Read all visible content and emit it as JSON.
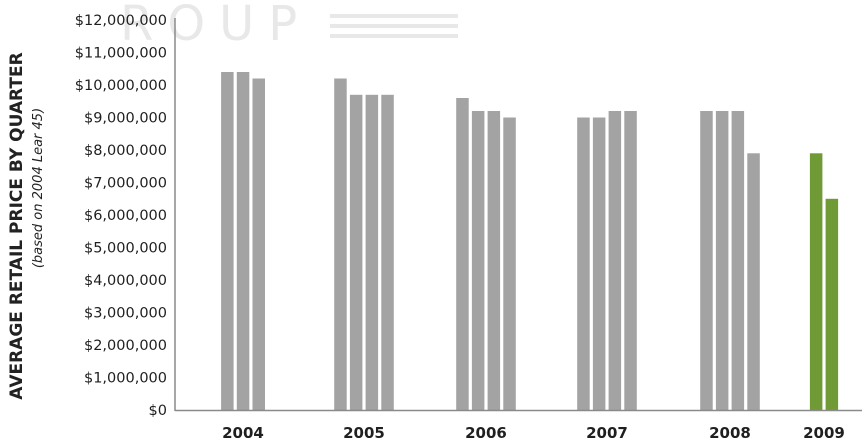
{
  "chart_data": {
    "type": "bar",
    "ylabel": "AVERAGE RETAIL PRICE BY QUARTER",
    "ylabel_sub": "(based on 2004 Lear 45)",
    "watermark_text": "ROUP",
    "ylim": [
      0,
      12000000
    ],
    "y_ticks": [
      "$0",
      "$1,000,000",
      "$2,000,000",
      "$3,000,000",
      "$4,000,000",
      "$5,000,000",
      "$6,000,000",
      "$7,000,000",
      "$8,000,000",
      "$9,000,000",
      "$10,000,000",
      "$11,000,000",
      "$12,000,000"
    ],
    "y_tick_values": [
      0,
      1000000,
      2000000,
      3000000,
      4000000,
      5000000,
      6000000,
      7000000,
      8000000,
      9000000,
      10000000,
      11000000,
      12000000
    ],
    "categories": [
      "2004",
      "2005",
      "2006",
      "2007",
      "2008",
      "2009"
    ],
    "quarters": [
      [
        10400000,
        10400000,
        10200000
      ],
      [
        10200000,
        9700000,
        9700000,
        9700000
      ],
      [
        9600000,
        9200000,
        9200000,
        9000000
      ],
      [
        9000000,
        9000000,
        9200000,
        9200000
      ],
      [
        9200000,
        9200000,
        9200000,
        7900000
      ],
      [
        7900000,
        6500000
      ]
    ],
    "grid": false,
    "colors": {
      "bar": "#a3a3a3",
      "highlight": "#6f9a35",
      "axis": "#8a8a8a"
    }
  }
}
